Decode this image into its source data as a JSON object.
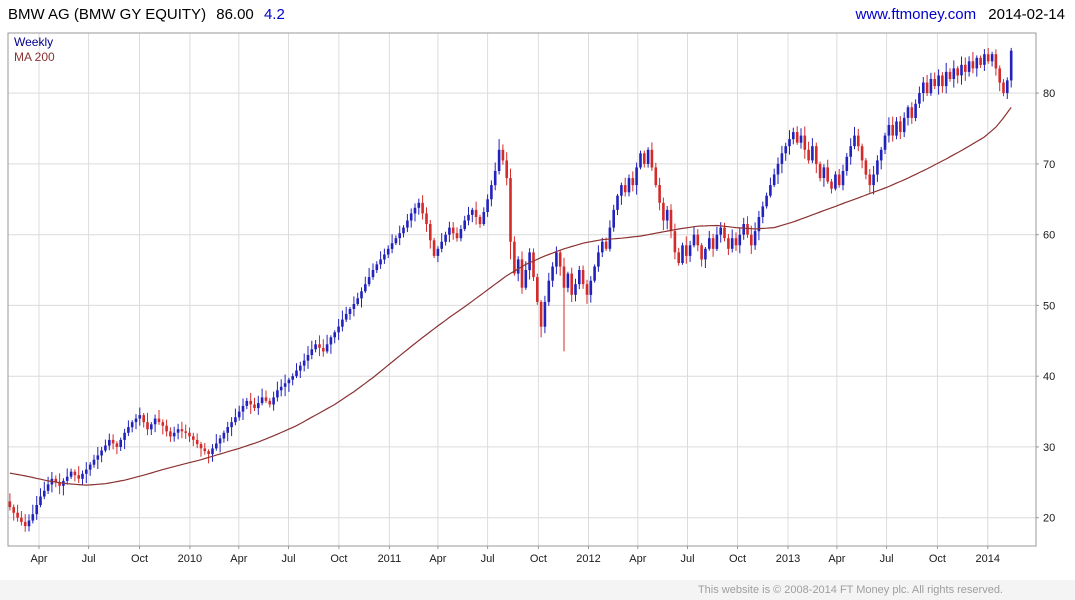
{
  "header": {
    "instrument": "BMW AG (BMW GY EQUITY)",
    "price": "86.00",
    "change": "4.2",
    "site_link": "www.ftmoney.com",
    "date": "2014-02-14"
  },
  "legend": {
    "series_label": "Weekly",
    "ma_label": "MA 200"
  },
  "footer": {
    "copyright": "This website is © 2008-2014 FT Money plc. All rights reserved."
  },
  "chart_data": {
    "type": "candlestick",
    "title": "BMW AG (BMW GY EQUITY) weekly candlesticks with 200-day moving average, Feb 2009 - Feb 2014",
    "ylim": [
      16,
      88.5
    ],
    "y_ticks": [
      20,
      30,
      40,
      50,
      60,
      70,
      80
    ],
    "x_ticks": [
      {
        "label": "Apr",
        "week": 7.6
      },
      {
        "label": "Jul",
        "week": 20.6
      },
      {
        "label": "Oct",
        "week": 33.9
      },
      {
        "label": "2010",
        "week": 47.1
      },
      {
        "label": "Apr",
        "week": 59.9
      },
      {
        "label": "Jul",
        "week": 72.9
      },
      {
        "label": "Oct",
        "week": 86.1
      },
      {
        "label": "2011",
        "week": 99.3
      },
      {
        "label": "Apr",
        "week": 112.0
      },
      {
        "label": "Jul",
        "week": 125.0
      },
      {
        "label": "Oct",
        "week": 138.3
      },
      {
        "label": "2012",
        "week": 151.4
      },
      {
        "label": "Apr",
        "week": 164.3
      },
      {
        "label": "Jul",
        "week": 177.3
      },
      {
        "label": "Oct",
        "week": 190.4
      },
      {
        "label": "2013",
        "week": 203.6
      },
      {
        "label": "Apr",
        "week": 216.4
      },
      {
        "label": "Jul",
        "week": 229.4
      },
      {
        "label": "Oct",
        "week": 242.7
      },
      {
        "label": "2014",
        "week": 255.9
      }
    ],
    "right_pad_weeks": 6,
    "colors": {
      "up": "#2222bd",
      "down": "#d42a2a",
      "ma": "#8b3232",
      "grid": "#dcdcdc",
      "axis": "#999999"
    },
    "weekly_closes": [
      21.5,
      20.7,
      20.0,
      19.4,
      18.8,
      19.6,
      20.5,
      21.8,
      23.0,
      23.8,
      24.7,
      25.5,
      25.0,
      24.5,
      25.2,
      25.8,
      26.5,
      26.0,
      25.5,
      26.2,
      26.8,
      27.5,
      28.2,
      28.8,
      29.5,
      30.2,
      31.0,
      30.5,
      30.0,
      31.0,
      32.0,
      32.8,
      33.5,
      34.0,
      34.5,
      33.5,
      32.5,
      33.2,
      34.0,
      33.5,
      33.0,
      32.2,
      31.5,
      32.0,
      32.5,
      32.2,
      32.0,
      31.5,
      31.0,
      30.4,
      29.8,
      29.4,
      29.0,
      29.8,
      30.5,
      31.2,
      32.0,
      32.8,
      33.5,
      34.2,
      35.0,
      35.8,
      36.5,
      36.0,
      35.5,
      36.2,
      37.0,
      36.5,
      36.0,
      37.0,
      38.0,
      38.5,
      39.0,
      39.5,
      40.0,
      40.8,
      41.5,
      42.2,
      43.0,
      43.8,
      44.5,
      44.0,
      43.5,
      44.5,
      45.5,
      46.2,
      47.0,
      48.0,
      48.8,
      49.5,
      50.2,
      51.0,
      52.0,
      53.0,
      54.0,
      55.0,
      55.8,
      56.5,
      57.2,
      58.0,
      58.8,
      59.5,
      60.2,
      61.0,
      62.0,
      63.0,
      63.8,
      64.5,
      63.0,
      61.5,
      59.2,
      57.0,
      58.0,
      59.0,
      60.0,
      61.0,
      60.2,
      59.5,
      60.8,
      62.0,
      62.8,
      63.5,
      62.5,
      61.5,
      63.2,
      65.0,
      67.0,
      69.0,
      72.0,
      70.5,
      68.0,
      59.0,
      54.5,
      56.5,
      52.5,
      55.0,
      57.5,
      54.0,
      50.5,
      47.0,
      50.5,
      53.5,
      55.5,
      57.5,
      55.5,
      52.5,
      54.5,
      51.5,
      53.0,
      55.0,
      53.0,
      51.5,
      53.5,
      55.5,
      57.5,
      59.0,
      58.0,
      61.0,
      63.5,
      65.5,
      67.0,
      66.0,
      68.0,
      67.0,
      69.5,
      71.5,
      70.0,
      72.0,
      69.5,
      67.0,
      64.5,
      62.0,
      63.5,
      60.5,
      57.5,
      56.0,
      58.5,
      57.0,
      58.5,
      60.0,
      58.5,
      56.5,
      58.0,
      59.5,
      58.0,
      60.0,
      61.0,
      59.5,
      58.0,
      59.5,
      58.5,
      60.0,
      61.5,
      60.0,
      58.5,
      60.5,
      62.5,
      64.0,
      65.5,
      67.0,
      68.5,
      70.0,
      71.5,
      72.5,
      73.5,
      74.5,
      73.0,
      74.0,
      72.0,
      70.5,
      72.5,
      70.0,
      68.0,
      69.5,
      67.5,
      66.5,
      68.5,
      67.0,
      69.0,
      71.0,
      72.5,
      74.0,
      72.5,
      70.5,
      68.5,
      67.0,
      68.5,
      70.5,
      72.0,
      74.0,
      75.5,
      74.0,
      76.0,
      74.5,
      76.5,
      78.0,
      76.5,
      78.5,
      80.0,
      81.5,
      80.0,
      82.0,
      81.0,
      82.5,
      81.0,
      83.0,
      82.0,
      83.5,
      82.5,
      84.0,
      83.0,
      84.5,
      83.5,
      85.0,
      84.0,
      85.5,
      84.5,
      85.5,
      83.5,
      81.5,
      80.0,
      81.8,
      86.0
    ],
    "wick_spikes": {
      "4": {
        "low": 18.0
      },
      "128": {
        "high": 73.5
      },
      "131": {
        "low": 56.5
      },
      "139": {
        "low": 45.5
      },
      "145": {
        "low": 43.5
      },
      "262": {
        "low": 80.8,
        "high": 86.4
      }
    },
    "ma200_anchors": [
      [
        0,
        26.3
      ],
      [
        5,
        25.8
      ],
      [
        10,
        25.2
      ],
      [
        15,
        24.8
      ],
      [
        20,
        24.6
      ],
      [
        25,
        24.8
      ],
      [
        30,
        25.3
      ],
      [
        35,
        26.0
      ],
      [
        40,
        26.8
      ],
      [
        45,
        27.5
      ],
      [
        50,
        28.2
      ],
      [
        55,
        29.0
      ],
      [
        60,
        29.8
      ],
      [
        65,
        30.7
      ],
      [
        70,
        31.8
      ],
      [
        75,
        33.0
      ],
      [
        80,
        34.5
      ],
      [
        85,
        36.0
      ],
      [
        90,
        37.8
      ],
      [
        95,
        39.8
      ],
      [
        100,
        42.0
      ],
      [
        105,
        44.2
      ],
      [
        110,
        46.3
      ],
      [
        115,
        48.3
      ],
      [
        120,
        50.2
      ],
      [
        125,
        52.2
      ],
      [
        130,
        54.2
      ],
      [
        135,
        55.8
      ],
      [
        140,
        57.0
      ],
      [
        145,
        58.0
      ],
      [
        150,
        58.8
      ],
      [
        155,
        59.3
      ],
      [
        160,
        59.5
      ],
      [
        165,
        59.8
      ],
      [
        170,
        60.3
      ],
      [
        175,
        60.8
      ],
      [
        180,
        61.2
      ],
      [
        185,
        61.3
      ],
      [
        190,
        61.0
      ],
      [
        195,
        60.8
      ],
      [
        200,
        61.0
      ],
      [
        205,
        61.8
      ],
      [
        210,
        62.8
      ],
      [
        215,
        63.8
      ],
      [
        220,
        64.8
      ],
      [
        225,
        65.8
      ],
      [
        230,
        66.8
      ],
      [
        235,
        68.0
      ],
      [
        240,
        69.3
      ],
      [
        245,
        70.7
      ],
      [
        250,
        72.2
      ],
      [
        255,
        73.8
      ],
      [
        258,
        75.2
      ],
      [
        260,
        76.5
      ],
      [
        262,
        78.0
      ]
    ]
  }
}
